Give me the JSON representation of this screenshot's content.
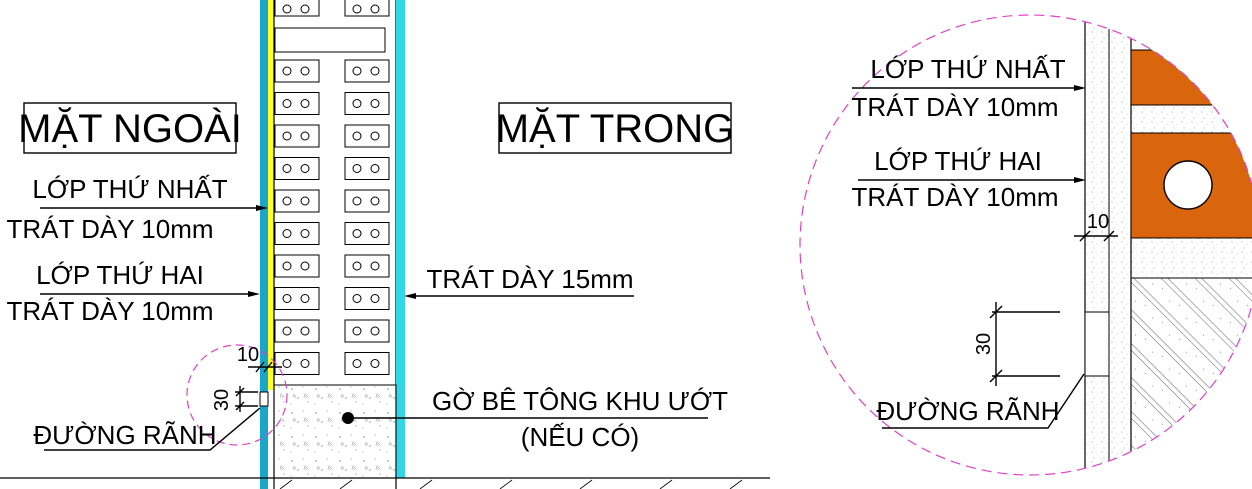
{
  "left_detail": {
    "outside_face_label": "MẶT NGOÀI",
    "inside_face_label": "MẶT TRONG",
    "layer1_line1": "LỚP THỨ NHẤT",
    "layer1_line2": "TRÁT DÀY 10mm",
    "layer2_line1": "LỚP THỨ HAI",
    "layer2_line2": "TRÁT DÀY 10mm",
    "inner_plaster": "TRÁT DÀY 15mm",
    "curb_line1": "GỜ BÊ TÔNG KHU ƯỚT",
    "curb_line2": "(NẾU CÓ)",
    "groove_label": "ĐƯỜNG RÃNH",
    "dim_layer": "10",
    "dim_groove": "30"
  },
  "right_detail": {
    "layer1_line1": "LỚP THỨ NHẤT",
    "layer1_line2": "TRÁT DÀY 10mm",
    "layer2_line1": "LỚP THỨ HAI",
    "layer2_line2": "TRÁT DÀY 10mm",
    "dim_layer": "10",
    "dim_groove": "30",
    "groove_label": "ĐƯỜNG RÃNH"
  },
  "colors": {
    "outer_plaster_cyan": "#1aa6c8",
    "yellow_layer": "#ffff2a",
    "inner_plaster_cyan": "#33d6e6",
    "brick_orange": "#d9650d",
    "detail_circle_magenta": "#e040c8"
  }
}
